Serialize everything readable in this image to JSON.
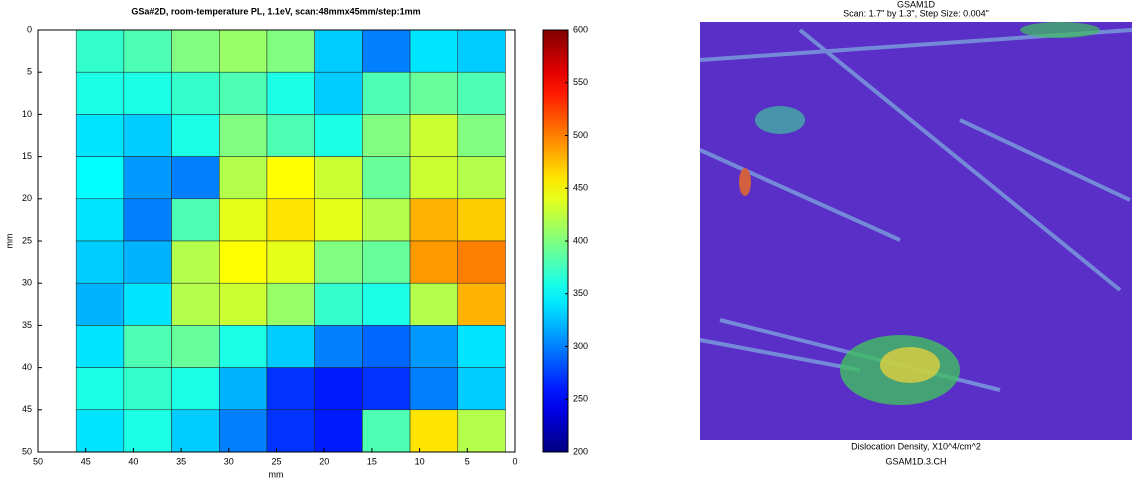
{
  "chart_data": {
    "type": "heatmap",
    "title": "GSa#2D, room-temperature PL, 1.1eV, scan:48mmx45mm/step:1mm",
    "x_label": "mm",
    "y_label": "mm",
    "xlim": [
      50,
      0
    ],
    "xticks": [
      50,
      45,
      40,
      35,
      30,
      25,
      20,
      15,
      10,
      5,
      0
    ],
    "ylim": [
      0,
      50
    ],
    "yticks": [
      0,
      5,
      10,
      15,
      20,
      25,
      30,
      35,
      40,
      45,
      50
    ],
    "xbins": [
      46,
      41,
      36,
      31,
      26,
      21,
      16,
      11,
      6,
      1
    ],
    "ybins": [
      0,
      5,
      10,
      15,
      20,
      25,
      30,
      35,
      40,
      45,
      50
    ],
    "z": [
      [
        370,
        380,
        400,
        410,
        400,
        330,
        300,
        340,
        330
      ],
      [
        360,
        360,
        370,
        380,
        360,
        330,
        380,
        390,
        380
      ],
      [
        340,
        330,
        360,
        400,
        380,
        360,
        400,
        430,
        400
      ],
      [
        350,
        310,
        300,
        420,
        450,
        430,
        390,
        430,
        420
      ],
      [
        340,
        300,
        380,
        440,
        460,
        440,
        420,
        480,
        470
      ],
      [
        330,
        320,
        420,
        450,
        440,
        400,
        390,
        490,
        500
      ],
      [
        320,
        340,
        420,
        430,
        410,
        370,
        360,
        420,
        480
      ],
      [
        340,
        380,
        390,
        360,
        330,
        300,
        290,
        310,
        340
      ],
      [
        360,
        370,
        360,
        320,
        270,
        260,
        270,
        300,
        330
      ],
      [
        340,
        360,
        330,
        300,
        270,
        260,
        380,
        460,
        420
      ]
    ],
    "colormap": "jet",
    "zlim": [
      200,
      600
    ],
    "zticks": [
      200,
      250,
      300,
      350,
      400,
      450,
      500,
      550,
      600
    ]
  },
  "right_panel": {
    "title": "GSAM1D",
    "subtitle": "Scan: 1.7\" by 1.3\", Step Size: 0.004\"",
    "caption": "Dislocation Density, X10^4/cm^2",
    "label": "GSAM1D.3.CH"
  }
}
